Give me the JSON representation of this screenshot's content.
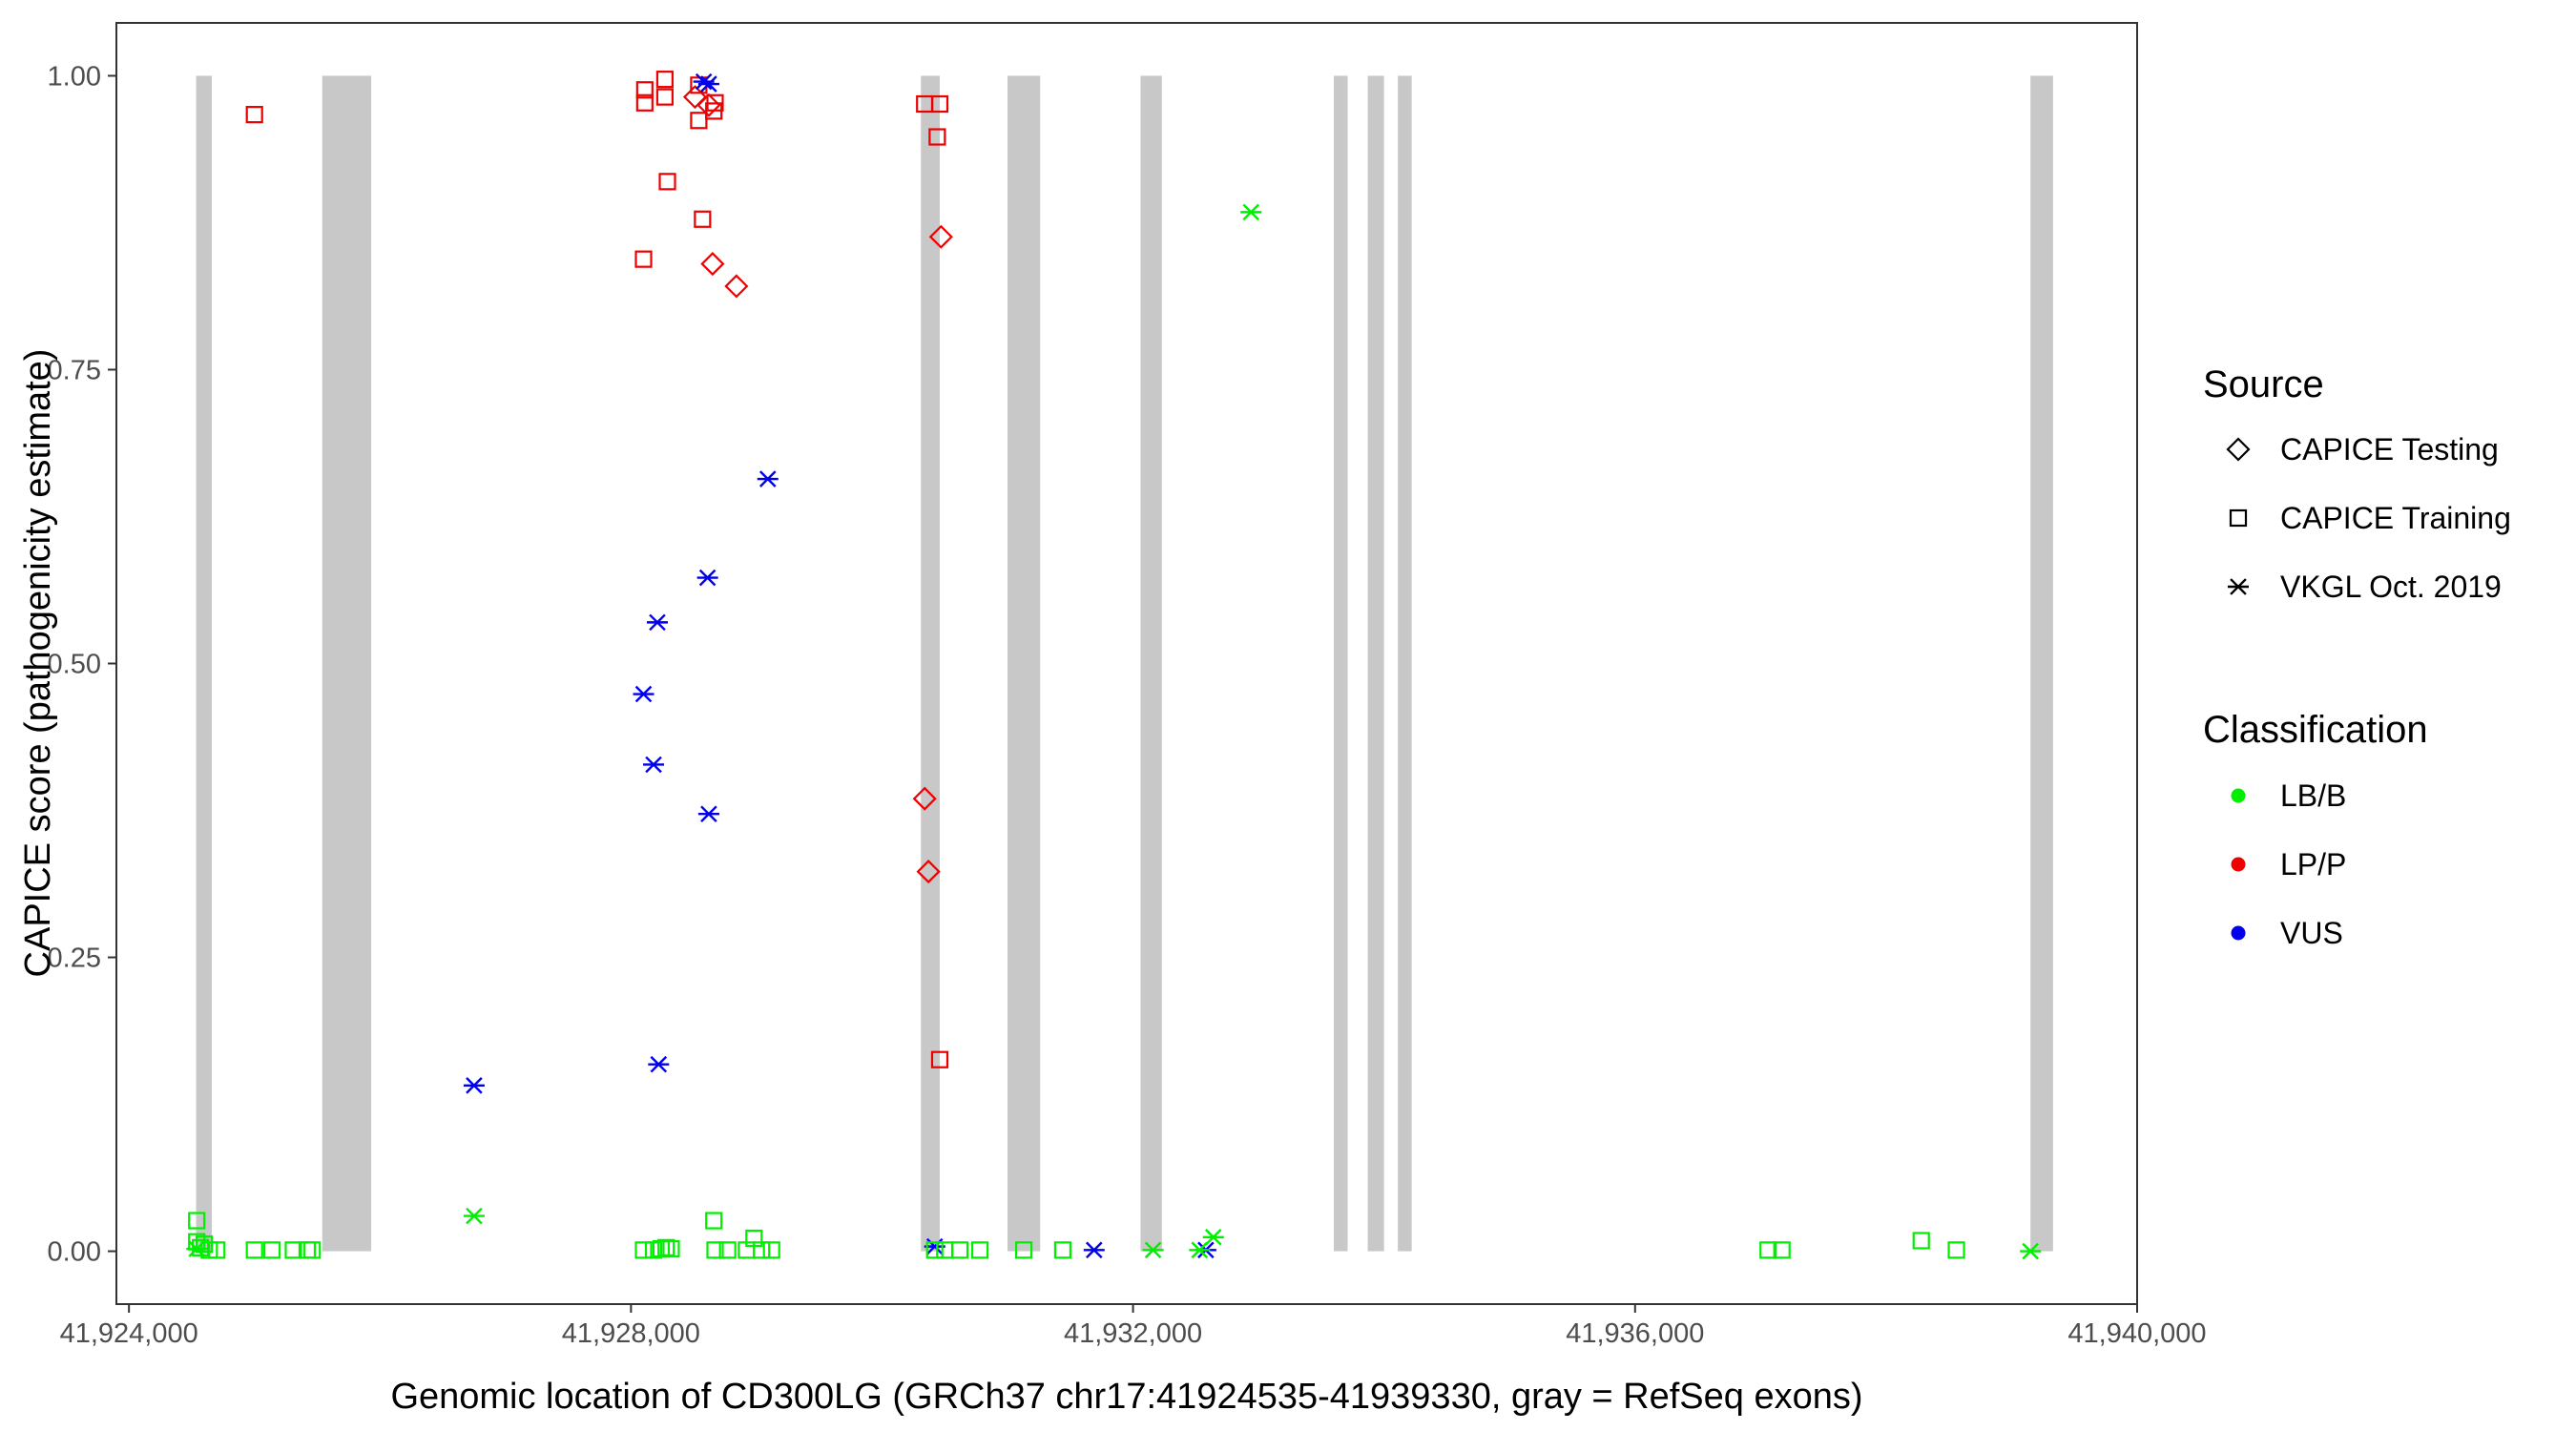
{
  "chart_data": {
    "type": "scatter",
    "title": "",
    "xlabel": "Genomic location of CD300LG (GRCh37 chr17:41924535-41939330, gray = RefSeq exons)",
    "ylabel": "CAPICE score (pathogenicity estimate)",
    "xlim": [
      41923900,
      41940000
    ],
    "ylim": [
      -0.045,
      1.045
    ],
    "x_ticks": [
      41924000,
      41928000,
      41932000,
      41936000,
      41940000
    ],
    "x_tick_labels": [
      "41,924,000",
      "41,928,000",
      "41,932,000",
      "41,936,000",
      "41,940,000"
    ],
    "y_ticks": [
      0,
      0.25,
      0.5,
      0.75,
      1
    ],
    "y_tick_labels": [
      "0.00",
      "0.25",
      "0.50",
      "0.75",
      "1.00"
    ],
    "grid": false,
    "legend_position": "right",
    "exons": [
      [
        41924535,
        41924660
      ],
      [
        41925540,
        41925930
      ],
      [
        41930310,
        41930460
      ],
      [
        41931000,
        41931260
      ],
      [
        41932060,
        41932230
      ],
      [
        41933600,
        41933710
      ],
      [
        41933870,
        41934000
      ],
      [
        41934110,
        41934220
      ],
      [
        41939150,
        41939330
      ]
    ],
    "legends": {
      "source": {
        "title": "Source",
        "entries": [
          {
            "label": "CAPICE Testing",
            "shape": "diamond"
          },
          {
            "label": "CAPICE Training",
            "shape": "square"
          },
          {
            "label": "VKGL Oct. 2019",
            "shape": "asterisk"
          }
        ]
      },
      "classification": {
        "title": "Classification",
        "entries": [
          {
            "label": "LB/B",
            "color": "#00ee00"
          },
          {
            "label": "LP/P",
            "color": "#ee0000"
          },
          {
            "label": "VUS",
            "color": "#0000ee"
          }
        ]
      }
    },
    "series": [
      {
        "source": "CAPICE Training",
        "classification": "LP/P",
        "points": [
          [
            41925000,
            0.967
          ],
          [
            41928110,
            0.988
          ],
          [
            41928110,
            0.977
          ],
          [
            41928270,
            0.997
          ],
          [
            41928270,
            0.982
          ],
          [
            41928540,
            0.992
          ],
          [
            41928540,
            0.962
          ],
          [
            41928670,
            0.977
          ],
          [
            41928660,
            0.97
          ],
          [
            41928290,
            0.91
          ],
          [
            41928570,
            0.878
          ],
          [
            41928100,
            0.844
          ],
          [
            41930340,
            0.976
          ],
          [
            41930460,
            0.976
          ],
          [
            41930440,
            0.948
          ],
          [
            41930460,
            0.163
          ]
        ]
      },
      {
        "source": "CAPICE Testing",
        "classification": "LP/P",
        "points": [
          [
            41928510,
            0.982
          ],
          [
            41928620,
            0.975
          ],
          [
            41928650,
            0.84
          ],
          [
            41928840,
            0.821
          ],
          [
            41930470,
            0.863
          ],
          [
            41930340,
            0.385
          ],
          [
            41930370,
            0.323
          ]
        ]
      },
      {
        "source": "VKGL Oct. 2019",
        "classification": "VUS",
        "points": [
          [
            41928580,
            0.995
          ],
          [
            41928620,
            0.993
          ],
          [
            41929090,
            0.657
          ],
          [
            41928610,
            0.573
          ],
          [
            41928210,
            0.535
          ],
          [
            41928100,
            0.474
          ],
          [
            41928180,
            0.414
          ],
          [
            41928620,
            0.372
          ],
          [
            41928220,
            0.159
          ],
          [
            41926750,
            0.141
          ],
          [
            41930420,
            0.004
          ],
          [
            41931690,
            0.001
          ],
          [
            41932580,
            0.001
          ]
        ]
      },
      {
        "source": "VKGL Oct. 2019",
        "classification": "LB/B",
        "points": [
          [
            41932940,
            0.884
          ],
          [
            41926750,
            0.03
          ],
          [
            41932640,
            0.012
          ],
          [
            41932160,
            0.001
          ],
          [
            41932530,
            0.001
          ],
          [
            41939150,
            0.0
          ],
          [
            41924540,
            0.002
          ]
        ]
      },
      {
        "source": "CAPICE Training",
        "classification": "LB/B",
        "points": [
          [
            41924540,
            0.026
          ],
          [
            41924540,
            0.008
          ],
          [
            41924600,
            0.006
          ],
          [
            41924570,
            0.003
          ],
          [
            41924640,
            0.001
          ],
          [
            41924700,
            0.001
          ],
          [
            41925000,
            0.001
          ],
          [
            41925140,
            0.001
          ],
          [
            41925310,
            0.001
          ],
          [
            41925420,
            0.001
          ],
          [
            41925460,
            0.001
          ],
          [
            41928100,
            0.001
          ],
          [
            41928180,
            0.001
          ],
          [
            41928240,
            0.002
          ],
          [
            41928280,
            0.003
          ],
          [
            41928320,
            0.002
          ],
          [
            41928660,
            0.026
          ],
          [
            41928670,
            0.001
          ],
          [
            41928770,
            0.001
          ],
          [
            41928920,
            0.001
          ],
          [
            41928980,
            0.011
          ],
          [
            41929040,
            0.001
          ],
          [
            41929120,
            0.001
          ],
          [
            41930420,
            0.001
          ],
          [
            41930500,
            0.001
          ],
          [
            41930620,
            0.001
          ],
          [
            41930780,
            0.001
          ],
          [
            41931130,
            0.001
          ],
          [
            41931440,
            0.001
          ],
          [
            41937060,
            0.001
          ],
          [
            41937170,
            0.001
          ],
          [
            41938280,
            0.009
          ],
          [
            41938560,
            0.001
          ]
        ]
      }
    ]
  }
}
